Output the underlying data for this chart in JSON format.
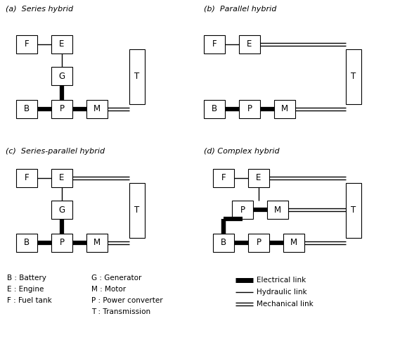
{
  "bg_color": "#ffffff",
  "box_edge": "#000000",
  "text_color": "#000000",
  "panel_titles": [
    "(a)  Series hybrid",
    "(b)  Parallel hybrid",
    "(c)  Series-parallel hybrid",
    "(d) Complex hybrid"
  ],
  "legend_left": [
    "B : Battery",
    "E : Engine",
    "F : Fuel tank"
  ],
  "legend_mid": [
    "G : Generator",
    "M : Motor",
    "P : Power converter",
    "T : Transmission"
  ],
  "legend_right_labels": [
    "Electrical link",
    "Hydraulic link",
    "Mechanical link"
  ],
  "legend_right_types": [
    "electrical",
    "hydraulic",
    "mechanical"
  ]
}
